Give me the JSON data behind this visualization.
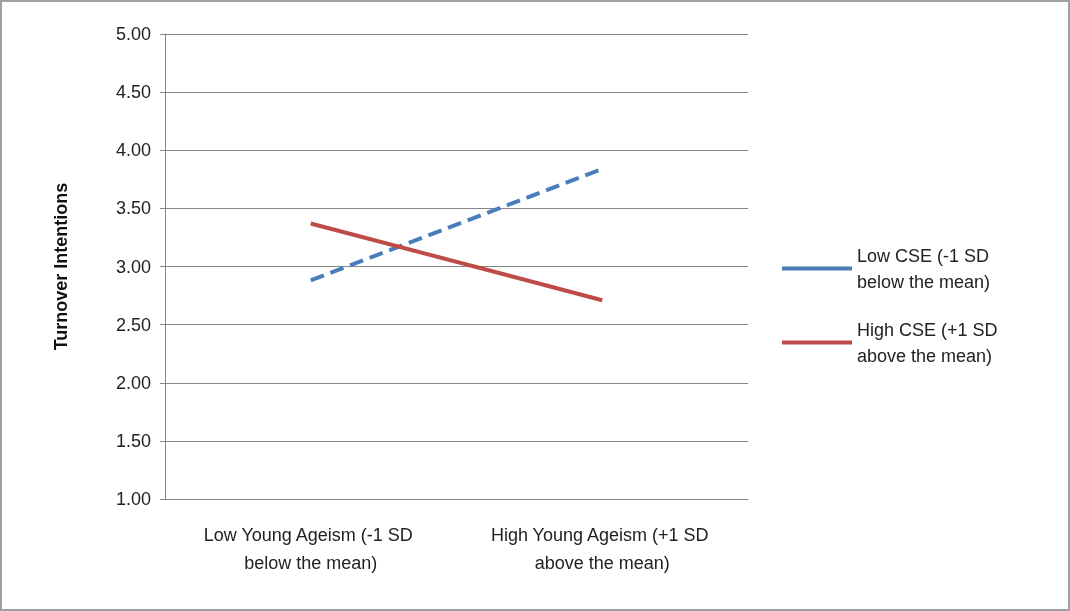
{
  "chart_data": {
    "type": "line",
    "ylabel": "Turnover Intentions",
    "categories": [
      "Low Young Ageism (-1 SD below the mean)",
      "High Young Ageism (+1 SD above the mean)"
    ],
    "series": [
      {
        "name": "Low CSE (-1 SD below the mean)",
        "color": "#4a7ebb",
        "values": [
          2.88,
          3.84
        ],
        "line_style": "dashed"
      },
      {
        "name": "High CSE (+1 SD above the mean)",
        "color": "#be4b48",
        "values": [
          3.37,
          2.71
        ],
        "line_style": "solid"
      }
    ],
    "ylim": [
      1,
      5
    ],
    "yticks": [
      {
        "value": 1,
        "label": "1.00"
      },
      {
        "value": 1.5,
        "label": "1.50"
      },
      {
        "value": 2,
        "label": "2.00"
      },
      {
        "value": 2.5,
        "label": "2.50"
      },
      {
        "value": 3,
        "label": "3.00"
      },
      {
        "value": 3.5,
        "label": "3.50"
      },
      {
        "value": 4,
        "label": "4.00"
      },
      {
        "value": 4.5,
        "label": "4.50"
      },
      {
        "value": 5,
        "label": "5.00"
      }
    ],
    "grid": "y",
    "legend": "right",
    "marker": "none"
  }
}
